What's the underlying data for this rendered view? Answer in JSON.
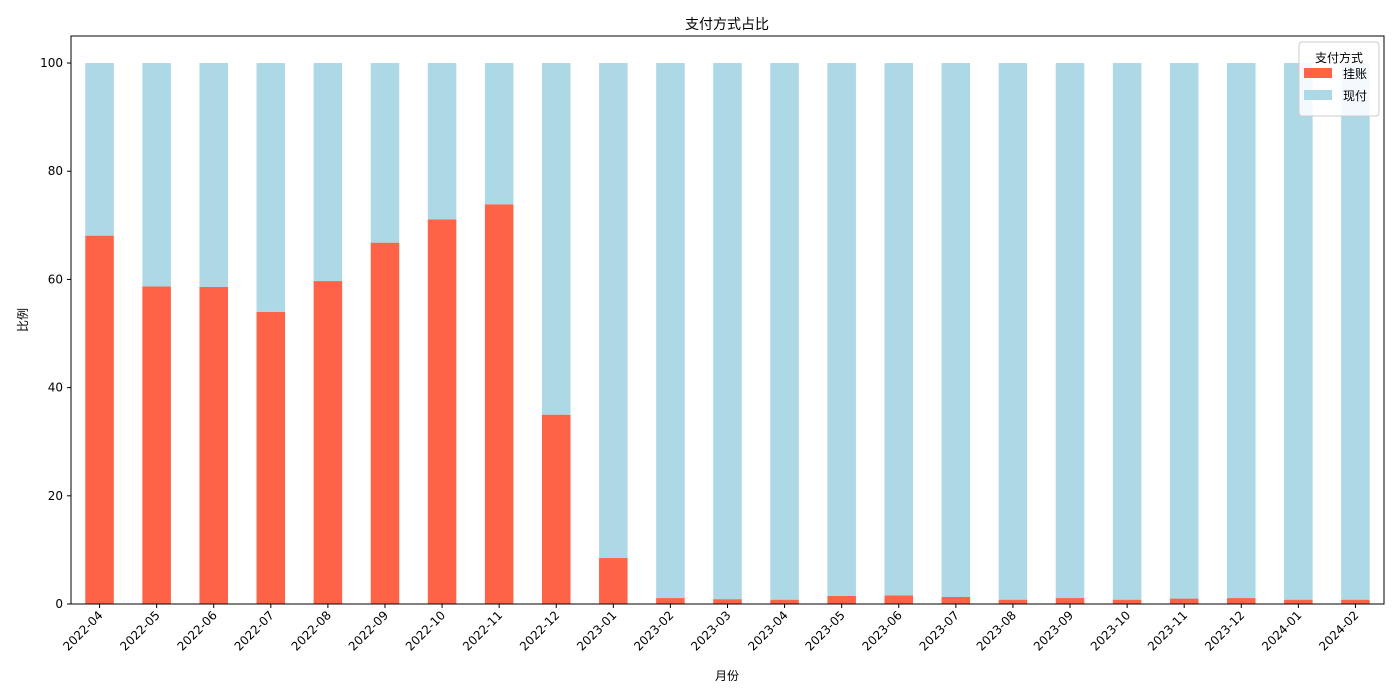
{
  "chart_data": {
    "type": "bar",
    "stacked": true,
    "title": "支付方式占比",
    "xlabel": "月份",
    "ylabel": "比例",
    "ylim": [
      0,
      105
    ],
    "yticks": [
      0,
      20,
      40,
      60,
      80,
      100
    ],
    "categories": [
      "2022-04",
      "2022-05",
      "2022-06",
      "2022-07",
      "2022-08",
      "2022-09",
      "2022-10",
      "2022-11",
      "2022-12",
      "2023-01",
      "2023-02",
      "2023-03",
      "2023-04",
      "2023-05",
      "2023-06",
      "2023-07",
      "2023-08",
      "2023-09",
      "2023-10",
      "2023-11",
      "2023-12",
      "2024-01",
      "2024-02"
    ],
    "legend": {
      "title": "支付方式",
      "position": "top-right"
    },
    "grid": false,
    "series": [
      {
        "name": "挂账",
        "color": "#ff6347",
        "values": [
          68.1,
          58.7,
          58.6,
          54.0,
          59.7,
          66.8,
          71.1,
          73.9,
          35.0,
          8.5,
          1.1,
          0.9,
          0.8,
          1.5,
          1.6,
          1.3,
          0.8,
          1.1,
          0.8,
          1.0,
          1.1,
          0.8,
          0.8
        ]
      },
      {
        "name": "现付",
        "color": "#add8e6",
        "values": [
          31.9,
          41.3,
          41.4,
          46.0,
          40.3,
          33.2,
          28.9,
          26.1,
          65.0,
          91.5,
          98.9,
          99.1,
          99.2,
          98.5,
          98.4,
          98.7,
          99.2,
          98.9,
          99.2,
          99.0,
          98.9,
          99.2,
          99.2
        ]
      }
    ]
  }
}
